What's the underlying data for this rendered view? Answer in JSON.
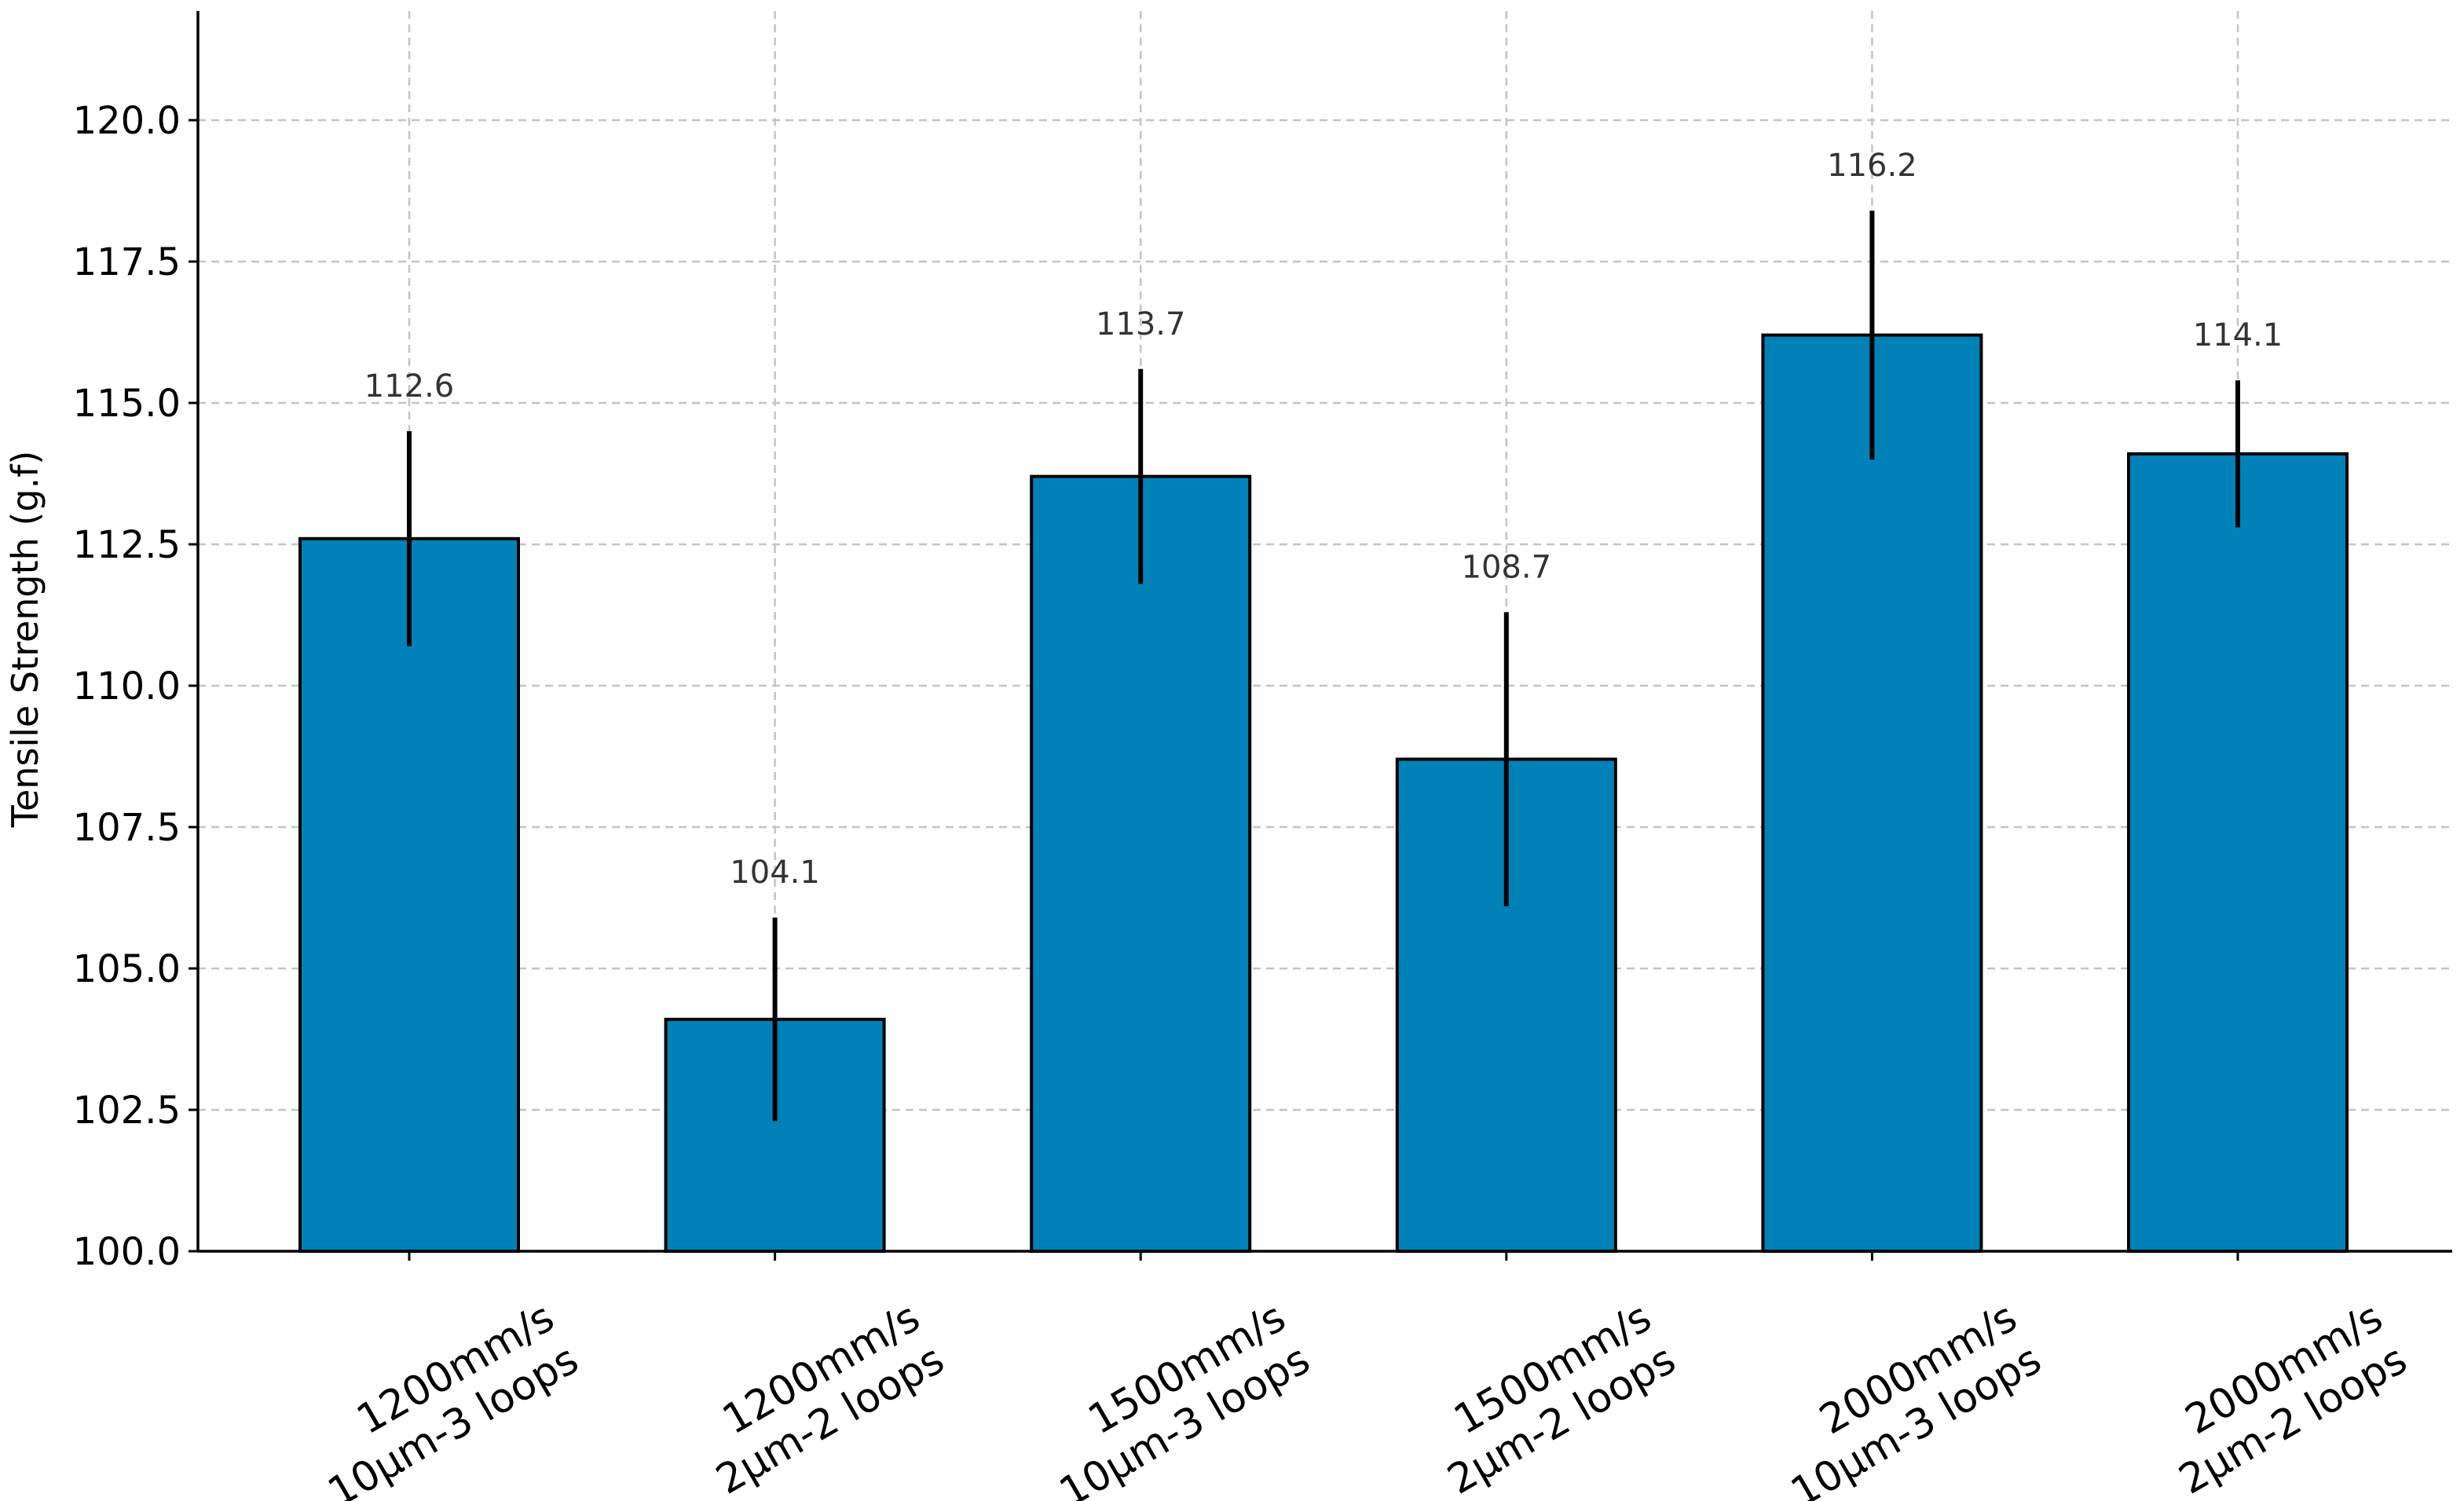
{
  "chart_data": {
    "type": "bar",
    "title": "",
    "xlabel": "",
    "ylabel": "Tensile Strength (g.f)",
    "ylim": [
      100.0,
      122.0
    ],
    "yticks": [
      100.0,
      102.5,
      105.0,
      107.5,
      110.0,
      112.5,
      115.0,
      117.5,
      120.0
    ],
    "ytick_labels": [
      "100.0",
      "102.5",
      "105.0",
      "107.5",
      "110.0",
      "112.5",
      "115.0",
      "117.5",
      "120.0"
    ],
    "grid": true,
    "bar_color": "#0082b8",
    "categories": [
      [
        "1200mm/s",
        "10µm-3 loops"
      ],
      [
        "1200mm/s",
        "2µm-2 loops"
      ],
      [
        "1500mm/s",
        "10µm-3 loops"
      ],
      [
        "1500mm/s",
        "2µm-2 loops"
      ],
      [
        "2000mm/s",
        "10µm-3 loops"
      ],
      [
        "2000mm/s",
        "2µm-2 loops"
      ]
    ],
    "values": [
      112.6,
      104.1,
      113.7,
      108.7,
      116.2,
      114.1
    ],
    "value_labels": [
      "112.6",
      "104.1",
      "113.7",
      "108.7",
      "116.2",
      "114.1"
    ],
    "errors": [
      1.9,
      1.8,
      1.9,
      2.6,
      2.2,
      1.3
    ]
  }
}
